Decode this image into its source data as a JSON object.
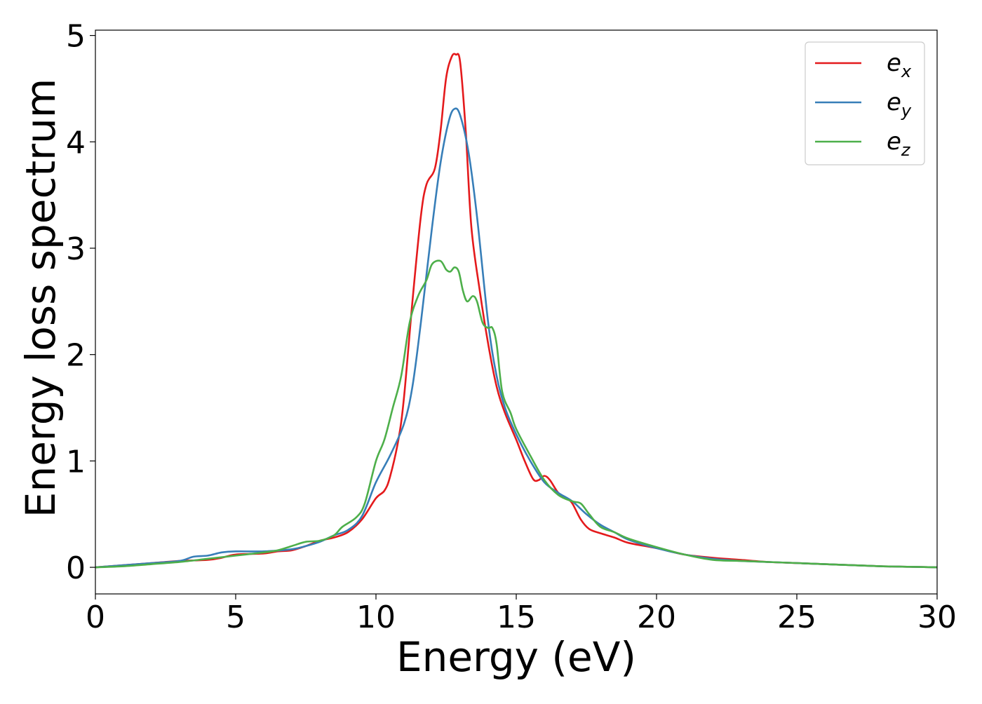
{
  "chart_data": {
    "type": "line",
    "title": "",
    "xlabel": "Energy (eV)",
    "ylabel": "Energy loss spectrum",
    "xlim": [
      0,
      30
    ],
    "ylim": [
      -0.25,
      5.05
    ],
    "xticks": [
      0,
      5,
      10,
      15,
      20,
      25,
      30
    ],
    "yticks": [
      0,
      1,
      2,
      3,
      4,
      5
    ],
    "grid": false,
    "legend_position": "top-right",
    "series": [
      {
        "name": "e",
        "subscript": "x",
        "color": "#e41a1c",
        "points": [
          [
            0,
            0.0
          ],
          [
            1,
            0.02
          ],
          [
            2,
            0.04
          ],
          [
            3,
            0.06
          ],
          [
            4,
            0.07
          ],
          [
            4.5,
            0.09
          ],
          [
            5,
            0.12
          ],
          [
            6,
            0.13
          ],
          [
            6.5,
            0.15
          ],
          [
            7,
            0.16
          ],
          [
            7.5,
            0.2
          ],
          [
            8,
            0.25
          ],
          [
            8.5,
            0.28
          ],
          [
            9,
            0.33
          ],
          [
            9.5,
            0.45
          ],
          [
            10,
            0.65
          ],
          [
            10.3,
            0.72
          ],
          [
            10.5,
            0.85
          ],
          [
            10.8,
            1.2
          ],
          [
            11,
            1.6
          ],
          [
            11.3,
            2.5
          ],
          [
            11.6,
            3.3
          ],
          [
            11.8,
            3.6
          ],
          [
            12.1,
            3.75
          ],
          [
            12.3,
            4.1
          ],
          [
            12.5,
            4.6
          ],
          [
            12.7,
            4.8
          ],
          [
            12.85,
            4.82
          ],
          [
            13.0,
            4.75
          ],
          [
            13.2,
            4.1
          ],
          [
            13.4,
            3.2
          ],
          [
            13.7,
            2.6
          ],
          [
            14.0,
            2.1
          ],
          [
            14.3,
            1.7
          ],
          [
            14.6,
            1.45
          ],
          [
            15.0,
            1.2
          ],
          [
            15.3,
            1.0
          ],
          [
            15.6,
            0.83
          ],
          [
            15.8,
            0.82
          ],
          [
            16.0,
            0.86
          ],
          [
            16.2,
            0.82
          ],
          [
            16.5,
            0.7
          ],
          [
            16.8,
            0.65
          ],
          [
            17.0,
            0.6
          ],
          [
            17.3,
            0.45
          ],
          [
            17.6,
            0.36
          ],
          [
            18.0,
            0.32
          ],
          [
            18.5,
            0.28
          ],
          [
            19.0,
            0.23
          ],
          [
            20.0,
            0.18
          ],
          [
            21.0,
            0.12
          ],
          [
            22.0,
            0.09
          ],
          [
            23.0,
            0.07
          ],
          [
            24.0,
            0.05
          ],
          [
            25.0,
            0.04
          ],
          [
            26.0,
            0.03
          ],
          [
            27.0,
            0.02
          ],
          [
            28.0,
            0.01
          ],
          [
            29.0,
            0.005
          ],
          [
            30.0,
            0.0
          ]
        ]
      },
      {
        "name": "e",
        "subscript": "y",
        "color": "#377eb8",
        "points": [
          [
            0,
            0.0
          ],
          [
            1,
            0.02
          ],
          [
            2,
            0.04
          ],
          [
            3,
            0.06
          ],
          [
            3.5,
            0.1
          ],
          [
            4,
            0.11
          ],
          [
            4.5,
            0.14
          ],
          [
            5,
            0.15
          ],
          [
            6,
            0.15
          ],
          [
            7,
            0.17
          ],
          [
            7.5,
            0.2
          ],
          [
            8,
            0.24
          ],
          [
            8.5,
            0.3
          ],
          [
            9,
            0.35
          ],
          [
            9.5,
            0.48
          ],
          [
            10,
            0.8
          ],
          [
            10.5,
            1.05
          ],
          [
            11,
            1.35
          ],
          [
            11.3,
            1.7
          ],
          [
            11.6,
            2.3
          ],
          [
            12.0,
            3.2
          ],
          [
            12.3,
            3.8
          ],
          [
            12.6,
            4.2
          ],
          [
            12.8,
            4.31
          ],
          [
            13.0,
            4.25
          ],
          [
            13.3,
            3.9
          ],
          [
            13.6,
            3.3
          ],
          [
            14.0,
            2.3
          ],
          [
            14.3,
            1.8
          ],
          [
            14.6,
            1.5
          ],
          [
            15.0,
            1.25
          ],
          [
            15.5,
            1.0
          ],
          [
            16.0,
            0.8
          ],
          [
            16.5,
            0.7
          ],
          [
            17.0,
            0.62
          ],
          [
            17.5,
            0.5
          ],
          [
            18.0,
            0.4
          ],
          [
            18.5,
            0.33
          ],
          [
            19.0,
            0.26
          ],
          [
            20.0,
            0.18
          ],
          [
            21.0,
            0.12
          ],
          [
            22.0,
            0.08
          ],
          [
            23.0,
            0.06
          ],
          [
            24.0,
            0.05
          ],
          [
            25.0,
            0.04
          ],
          [
            26.0,
            0.03
          ],
          [
            27.0,
            0.02
          ],
          [
            28.0,
            0.01
          ],
          [
            29.0,
            0.005
          ],
          [
            30.0,
            0.0
          ]
        ]
      },
      {
        "name": "e",
        "subscript": "z",
        "color": "#4daf4a",
        "points": [
          [
            0,
            0.0
          ],
          [
            1,
            0.01
          ],
          [
            2,
            0.03
          ],
          [
            3,
            0.05
          ],
          [
            4,
            0.08
          ],
          [
            5,
            0.11
          ],
          [
            6,
            0.14
          ],
          [
            6.5,
            0.16
          ],
          [
            7,
            0.2
          ],
          [
            7.5,
            0.24
          ],
          [
            8,
            0.25
          ],
          [
            8.5,
            0.3
          ],
          [
            8.8,
            0.38
          ],
          [
            9.3,
            0.47
          ],
          [
            9.6,
            0.6
          ],
          [
            10,
            1.0
          ],
          [
            10.3,
            1.2
          ],
          [
            10.6,
            1.5
          ],
          [
            10.9,
            1.8
          ],
          [
            11.2,
            2.3
          ],
          [
            11.5,
            2.55
          ],
          [
            11.8,
            2.7
          ],
          [
            12.0,
            2.85
          ],
          [
            12.3,
            2.88
          ],
          [
            12.5,
            2.8
          ],
          [
            12.65,
            2.78
          ],
          [
            12.8,
            2.82
          ],
          [
            12.95,
            2.78
          ],
          [
            13.1,
            2.6
          ],
          [
            13.25,
            2.5
          ],
          [
            13.45,
            2.55
          ],
          [
            13.6,
            2.5
          ],
          [
            13.8,
            2.3
          ],
          [
            14.0,
            2.25
          ],
          [
            14.15,
            2.25
          ],
          [
            14.3,
            2.1
          ],
          [
            14.5,
            1.65
          ],
          [
            14.8,
            1.45
          ],
          [
            15.0,
            1.3
          ],
          [
            15.5,
            1.05
          ],
          [
            16.0,
            0.82
          ],
          [
            16.5,
            0.68
          ],
          [
            17.0,
            0.62
          ],
          [
            17.3,
            0.6
          ],
          [
            17.6,
            0.5
          ],
          [
            18.0,
            0.38
          ],
          [
            18.5,
            0.33
          ],
          [
            19.0,
            0.27
          ],
          [
            20.0,
            0.19
          ],
          [
            21.0,
            0.12
          ],
          [
            22.0,
            0.07
          ],
          [
            23.0,
            0.06
          ],
          [
            24.0,
            0.05
          ],
          [
            25.0,
            0.04
          ],
          [
            26.0,
            0.03
          ],
          [
            27.0,
            0.02
          ],
          [
            28.0,
            0.01
          ],
          [
            29.0,
            0.005
          ],
          [
            30.0,
            0.0
          ]
        ]
      }
    ]
  }
}
